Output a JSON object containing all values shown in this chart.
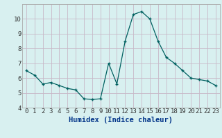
{
  "x": [
    0,
    1,
    2,
    3,
    4,
    5,
    6,
    7,
    8,
    9,
    10,
    11,
    12,
    13,
    14,
    15,
    16,
    17,
    18,
    19,
    20,
    21,
    22,
    23
  ],
  "y": [
    6.5,
    6.2,
    5.6,
    5.7,
    5.5,
    5.3,
    5.2,
    4.6,
    4.55,
    4.6,
    7.0,
    5.6,
    8.5,
    10.3,
    10.5,
    10.0,
    8.5,
    7.4,
    7.0,
    6.5,
    6.0,
    5.9,
    5.8,
    5.5
  ],
  "xlabel": "Humidex (Indice chaleur)",
  "ylim": [
    4,
    11
  ],
  "yticks": [
    4,
    5,
    6,
    7,
    8,
    9,
    10
  ],
  "xlim": [
    -0.5,
    23.5
  ],
  "bg_color": "#d8f0f0",
  "grid_color": "#c8b8c8",
  "line_color": "#006060",
  "marker_color": "#006060",
  "xlabel_fontsize": 7.5,
  "tick_fontsize": 6.5,
  "xlabel_color": "#003388"
}
